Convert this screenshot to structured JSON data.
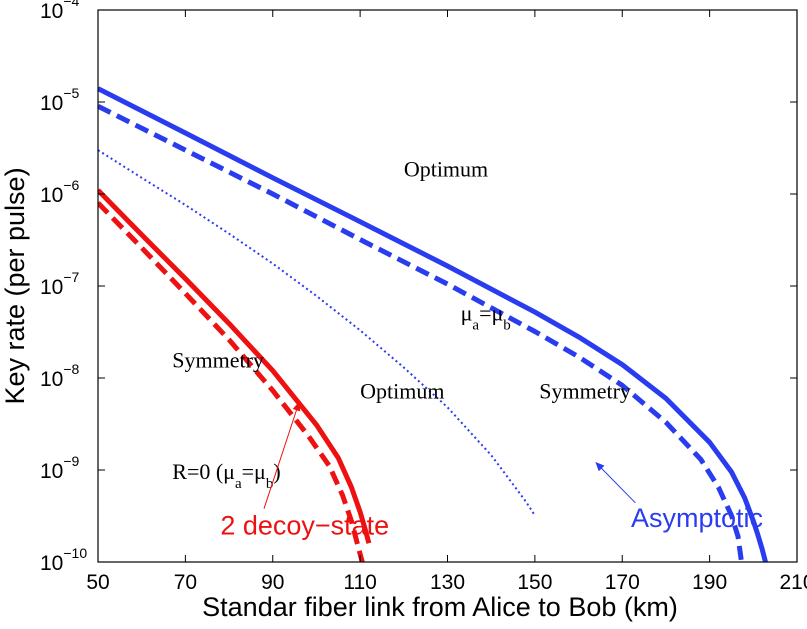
{
  "chart_data": {
    "type": "line",
    "title": "",
    "xlabel": "Standar fiber link from Alice to Bob (km)",
    "ylabel": "Key rate (per pulse)",
    "xlim": [
      50,
      210
    ],
    "ylim": [
      1e-10,
      0.0001
    ],
    "yscale": "log",
    "xticks": [
      "50",
      "70",
      "90",
      "110",
      "130",
      "150",
      "170",
      "190",
      "210"
    ],
    "yticks": [
      {
        "base": "10",
        "exp": "−10"
      },
      {
        "base": "10",
        "exp": "−9"
      },
      {
        "base": "10",
        "exp": "−8"
      },
      {
        "base": "10",
        "exp": "−7"
      },
      {
        "base": "10",
        "exp": "−6"
      },
      {
        "base": "10",
        "exp": "−5"
      },
      {
        "base": "10",
        "exp": "−4"
      }
    ],
    "grid": false,
    "series": [
      {
        "style": "solid",
        "color": "#2a3cf0",
        "points": [
          [
            50,
            1.4e-05
          ],
          [
            70,
            4.6e-06
          ],
          [
            90,
            1.5e-06
          ],
          [
            110,
            5e-07
          ],
          [
            130,
            1.65e-07
          ],
          [
            150,
            5.2e-08
          ],
          [
            160,
            2.8e-08
          ],
          [
            170,
            1.4e-08
          ],
          [
            180,
            6e-09
          ],
          [
            190,
            2e-09
          ],
          [
            195,
            9.5e-10
          ],
          [
            198,
            5e-10
          ],
          [
            200,
            2.8e-10
          ],
          [
            201,
            2e-10
          ],
          [
            202,
            1.4e-10
          ],
          [
            202.8,
            1e-10
          ]
        ]
      },
      {
        "style": "dashed",
        "color": "#2a3cf0",
        "points": [
          [
            50,
            9e-06
          ],
          [
            70,
            3e-06
          ],
          [
            90,
            1e-06
          ],
          [
            110,
            3.2e-07
          ],
          [
            130,
            1.05e-07
          ],
          [
            150,
            3.2e-08
          ],
          [
            160,
            1.7e-08
          ],
          [
            170,
            8.3e-09
          ],
          [
            180,
            3.3e-09
          ],
          [
            188,
            1.3e-09
          ],
          [
            192,
            6.5e-10
          ],
          [
            195,
            3.2e-10
          ],
          [
            196.5,
            1.9e-10
          ],
          [
            197.3,
            1e-10
          ]
        ]
      },
      {
        "style": "dotted",
        "color": "#2a3cf0",
        "points": [
          [
            50,
            3e-06
          ],
          [
            60,
            1.5e-06
          ],
          [
            70,
            7.6e-07
          ],
          [
            80,
            3.7e-07
          ],
          [
            90,
            1.75e-07
          ],
          [
            100,
            7.8e-08
          ],
          [
            110,
            3.3e-08
          ],
          [
            120,
            1.3e-08
          ],
          [
            130,
            4.8e-09
          ],
          [
            140,
            1.45e-09
          ],
          [
            145,
            7e-10
          ],
          [
            148,
            4.5e-10
          ],
          [
            150,
            3.2e-10
          ]
        ]
      },
      {
        "style": "solid",
        "color": "#ee1111",
        "points": [
          [
            50,
            1.1e-06
          ],
          [
            60,
            3.6e-07
          ],
          [
            70,
            1.2e-07
          ],
          [
            80,
            3.9e-08
          ],
          [
            90,
            1.2e-08
          ],
          [
            100,
            3.1e-09
          ],
          [
            105,
            1.35e-09
          ],
          [
            108,
            6.5e-10
          ],
          [
            110,
            3.5e-10
          ],
          [
            111,
            2.4e-10
          ],
          [
            112,
            1.6e-10
          ]
        ]
      },
      {
        "style": "dashed",
        "color": "#ee1111",
        "points": [
          [
            50,
            8e-07
          ],
          [
            60,
            2.6e-07
          ],
          [
            70,
            8.3e-08
          ],
          [
            80,
            2.6e-08
          ],
          [
            90,
            7.3e-09
          ],
          [
            98,
            2.4e-09
          ],
          [
            103,
            1.1e-09
          ],
          [
            106,
            5.3e-10
          ],
          [
            108,
            2.8e-10
          ],
          [
            109.5,
            1.5e-10
          ],
          [
            110.5,
            1e-10
          ]
        ]
      }
    ],
    "annotations": [
      {
        "text": "Optimum",
        "x": 120,
        "y": 1.55e-06,
        "color": "#000000"
      },
      {
        "base": "μ",
        "sub1": "a",
        "mid": "=μ",
        "sub2": "b",
        "x": 133,
        "y": 4.2e-08,
        "color": "#000000"
      },
      {
        "text": "Symmetry",
        "x": 151,
        "y": 6e-09,
        "color": "#000000"
      },
      {
        "text": "Symmetry",
        "x": 67,
        "y": 1.3e-08,
        "color": "#000000"
      },
      {
        "text": "Optimum",
        "x": 110,
        "y": 6e-09,
        "color": "#000000"
      },
      {
        "prefix": "R=0 (μ",
        "sub1": "a",
        "mid": "=μ",
        "sub2": "b",
        "suffix": ")",
        "x": 67,
        "y": 8e-10,
        "color": "#000000"
      },
      {
        "text": "2 decoy−state",
        "x": 78,
        "y": 2e-10,
        "color": "#ee1111"
      },
      {
        "text": "Asymptotic",
        "x": 172,
        "y": 2.4e-10,
        "color": "#2a3cf0"
      }
    ],
    "arrows": [
      {
        "from": [
          88,
          3.8e-10
        ],
        "to": [
          96,
          5.4e-09
        ],
        "color": "#ee1111"
      },
      {
        "from": [
          173,
          4.4e-10
        ],
        "to": [
          164,
          1.2e-09
        ],
        "color": "#2a3cf0"
      }
    ]
  }
}
